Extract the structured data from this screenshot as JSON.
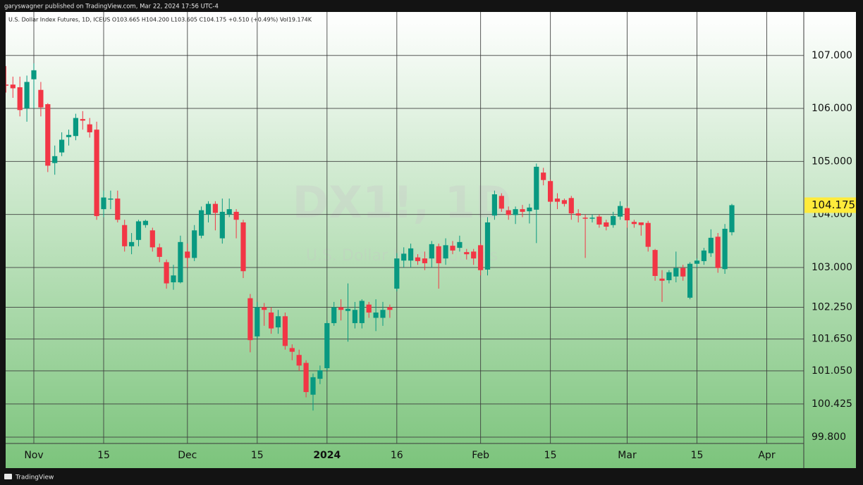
{
  "chart_data": {
    "type": "candlestick",
    "publisher": "garyswagner published on TradingView.com, Mar 22, 2024 17:56 UTC-4",
    "subtitle": "U.S. Dollar Index Futures, 1D, ICEUS  O103.665  H104.200  L103.605  C104.175  +0.510 (+0.49%)  Vol19.174K",
    "watermark": "DX1!, 1D",
    "watermark_subtitle": "U.S. Dollar Index Futures",
    "brand": "TradingView",
    "categories": [
      null,
      null,
      null,
      null,
      "Nov",
      null,
      null,
      null,
      null,
      null,
      null,
      null,
      null,
      null,
      "15",
      null,
      null,
      null,
      null,
      null,
      null,
      null,
      null,
      null,
      null,
      null,
      "Dec",
      null,
      null,
      null,
      null,
      null,
      null,
      null,
      null,
      null,
      "15",
      null,
      null,
      null,
      null,
      null,
      null,
      null,
      null,
      null,
      "2024",
      null,
      null,
      null,
      null,
      null,
      null,
      null,
      null,
      null,
      "16",
      null,
      null,
      null,
      null,
      null,
      null,
      null,
      null,
      null,
      null,
      null,
      "Feb",
      null,
      null,
      null,
      null,
      null,
      null,
      null,
      null,
      null,
      "15",
      null,
      null,
      null,
      null,
      null,
      null,
      null,
      null,
      null,
      null,
      "Mar",
      null,
      null,
      null,
      null,
      null,
      null,
      null,
      null,
      null,
      "15",
      null,
      null,
      null,
      null,
      null,
      null,
      null,
      null,
      null,
      "Apr"
    ],
    "open": [
      106.45,
      106.45,
      106.4,
      106.0,
      106.55,
      106.35,
      106.08,
      104.97,
      105.17,
      105.46,
      105.48,
      105.8,
      105.7,
      105.6,
      104.1,
      104.28,
      104.3,
      103.8,
      103.4,
      103.52,
      103.8,
      103.7,
      103.38,
      103.1,
      102.72,
      102.72,
      103.3,
      103.18,
      103.6,
      104.0,
      104.2,
      103.55,
      104.0,
      104.05,
      103.85,
      102.42,
      101.7,
      102.25,
      102.15,
      101.87,
      102.08,
      101.48,
      101.35,
      101.2,
      100.6,
      100.9,
      101.1,
      101.95,
      102.25,
      102.18,
      101.95,
      101.95,
      102.3,
      102.05,
      102.05,
      102.25,
      102.6,
      103.13,
      103.13,
      103.19,
      103.17,
      103.17,
      103.4,
      103.17,
      103.41,
      103.37,
      103.29,
      103.3,
      103.42,
      102.96,
      103.98,
      104.35,
      104.08,
      103.99,
      104.1,
      104.06,
      104.09,
      104.79,
      104.63,
      104.3,
      104.27,
      104.31,
      104.02,
      103.94,
      103.92,
      103.96,
      103.85,
      103.8,
      103.96,
      104.12,
      103.86,
      103.85,
      103.84,
      103.33,
      102.79,
      102.76,
      102.83,
      102.99,
      102.43,
      103.07,
      103.12,
      103.27,
      103.58,
      102.97,
      103.665,
      null,
      null,
      null,
      null,
      null
    ],
    "high": [
      106.8,
      106.6,
      106.6,
      106.62,
      106.85,
      106.5,
      106.1,
      105.3,
      105.55,
      105.6,
      105.9,
      105.95,
      105.82,
      105.75,
      104.45,
      104.45,
      104.45,
      103.9,
      103.65,
      103.9,
      103.9,
      103.75,
      103.45,
      103.15,
      103.05,
      103.6,
      103.45,
      103.8,
      104.15,
      104.25,
      104.25,
      104.3,
      104.3,
      104.1,
      103.9,
      102.5,
      102.35,
      102.33,
      102.25,
      102.2,
      102.15,
      101.55,
      101.45,
      101.25,
      101.0,
      101.15,
      102.0,
      102.35,
      102.4,
      102.7,
      102.35,
      102.4,
      102.35,
      102.4,
      102.35,
      102.3,
      103.27,
      103.38,
      103.45,
      103.25,
      103.3,
      103.5,
      103.45,
      103.55,
      103.5,
      103.6,
      103.35,
      103.35,
      103.45,
      103.95,
      104.45,
      104.4,
      104.15,
      104.15,
      104.18,
      104.2,
      104.96,
      104.88,
      104.66,
      104.4,
      104.3,
      104.35,
      104.1,
      104.0,
      104.0,
      104.0,
      103.9,
      104.05,
      104.25,
      104.15,
      103.9,
      103.85,
      103.88,
      103.35,
      102.95,
      102.95,
      103.3,
      103.05,
      103.1,
      103.17,
      103.37,
      103.72,
      103.65,
      103.82,
      104.2,
      null,
      null,
      null,
      null,
      null
    ],
    "low": [
      106.3,
      106.2,
      105.85,
      105.75,
      106.0,
      105.85,
      104.8,
      104.75,
      105.1,
      105.3,
      105.4,
      105.6,
      105.45,
      103.9,
      103.95,
      104.1,
      103.85,
      103.3,
      103.25,
      103.4,
      103.75,
      103.3,
      103.1,
      102.6,
      102.58,
      102.7,
      103.0,
      103.12,
      103.55,
      103.85,
      103.7,
      103.45,
      103.95,
      103.55,
      102.8,
      101.4,
      101.65,
      101.9,
      101.75,
      101.75,
      101.45,
      101.25,
      101.05,
      100.55,
      100.3,
      100.8,
      101.05,
      101.9,
      102.0,
      101.6,
      101.85,
      101.85,
      102.05,
      101.8,
      101.9,
      102.05,
      102.55,
      103.0,
      103.0,
      103.05,
      102.95,
      103.0,
      102.6,
      103.05,
      103.25,
      103.3,
      103.15,
      103.05,
      102.85,
      102.85,
      103.9,
      104.05,
      103.9,
      103.82,
      103.95,
      103.83,
      103.46,
      104.55,
      104.2,
      104.1,
      104.15,
      103.9,
      103.85,
      103.18,
      103.85,
      103.75,
      103.7,
      103.75,
      103.9,
      103.75,
      103.75,
      103.6,
      103.3,
      102.75,
      102.35,
      102.7,
      102.72,
      102.75,
      102.4,
      103.0,
      103.05,
      103.2,
      102.9,
      102.88,
      103.605,
      null,
      null,
      null,
      null,
      null
    ],
    "close": [
      106.43,
      106.38,
      105.97,
      106.5,
      106.72,
      106.02,
      104.92,
      105.1,
      105.41,
      105.5,
      105.82,
      105.77,
      105.55,
      103.97,
      104.32,
      104.3,
      103.9,
      103.4,
      103.48,
      103.87,
      103.88,
      103.38,
      103.2,
      102.7,
      102.85,
      103.48,
      103.18,
      103.7,
      104.08,
      104.2,
      104.03,
      104.05,
      104.1,
      103.9,
      102.93,
      101.63,
      102.25,
      102.2,
      101.85,
      102.08,
      101.52,
      101.41,
      101.15,
      100.65,
      100.93,
      101.06,
      101.95,
      102.25,
      102.2,
      102.22,
      102.2,
      102.37,
      102.15,
      102.15,
      102.2,
      102.2,
      103.17,
      103.26,
      103.36,
      103.12,
      103.08,
      103.44,
      103.08,
      103.42,
      103.32,
      103.48,
      103.25,
      103.17,
      102.95,
      103.85,
      104.38,
      104.11,
      103.99,
      104.1,
      104.05,
      104.13,
      104.9,
      104.65,
      104.24,
      104.24,
      104.2,
      104.02,
      103.98,
      103.92,
      103.94,
      103.81,
      103.77,
      103.97,
      104.16,
      103.89,
      103.82,
      103.8,
      103.39,
      102.84,
      102.75,
      102.91,
      102.99,
      102.83,
      103.07,
      103.13,
      103.32,
      103.56,
      102.99,
      103.73,
      104.175,
      null,
      null,
      null,
      null,
      null
    ],
    "up_color": "#089981",
    "down_color": "#f23645",
    "last_price_color": "#ffeb3b",
    "ylim": [
      99.68,
      107.82
    ],
    "yticks": [
      {
        "value": 99.8,
        "label": "99.800"
      },
      100.425,
      {
        "value": 101.05,
        "label": "101.050"
      },
      {
        "value": 101.65,
        "label": "101.650"
      },
      {
        "value": 102.25,
        "label": "102.250"
      },
      {
        "value": 103,
        "label": "103.000"
      },
      {
        "value": 104,
        "label": "104.000"
      },
      {
        "value": 105,
        "label": "105.000"
      },
      {
        "value": 106,
        "label": "106.000"
      },
      {
        "value": 107,
        "label": "107.000"
      }
    ],
    "grid": true
  }
}
